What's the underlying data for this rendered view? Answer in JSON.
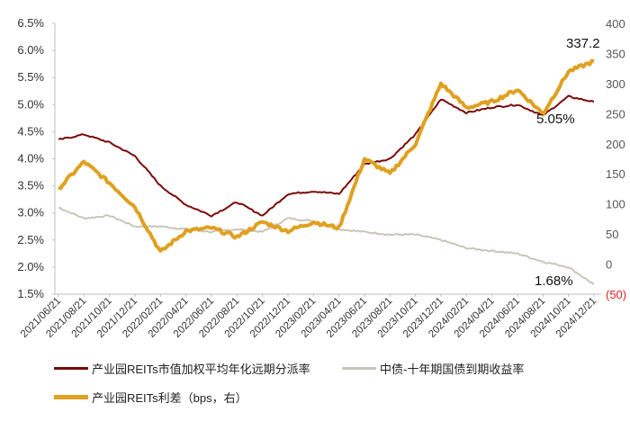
{
  "chart_data": {
    "type": "line",
    "title": "",
    "xlabel": "",
    "ylabel": "",
    "ylabel_right": "",
    "ylim": [
      1.5,
      6.5
    ],
    "ylim_right": [
      -50,
      400
    ],
    "yticks_left": [
      "6.5%",
      "6.0%",
      "5.5%",
      "5.0%",
      "4.5%",
      "4.0%",
      "3.5%",
      "3.0%",
      "2.5%",
      "2.0%",
      "1.5%"
    ],
    "yticks_right": [
      "400",
      "350",
      "300",
      "250",
      "200",
      "150",
      "100",
      "50",
      "0",
      "(50)"
    ],
    "x": [
      "2021/06/21",
      "2021/08/21",
      "2021/10/21",
      "2021/12/21",
      "2022/02/21",
      "2022/04/21",
      "2022/06/21",
      "2022/08/21",
      "2022/10/21",
      "2022/12/21",
      "2023/02/21",
      "2023/04/21",
      "2023/06/21",
      "2023/08/21",
      "2023/10/21",
      "2023/12/21",
      "2024/02/21",
      "2024/04/21",
      "2024/06/21",
      "2024/08/21",
      "2024/10/21",
      "2024/12/21"
    ],
    "grid": false,
    "legend_position": "bottom",
    "series": [
      {
        "name": "产业园REITs市值加权平均年化远期分派率",
        "axis": "left",
        "unit": "%",
        "color": "#7a0a0a",
        "values": [
          4.35,
          4.45,
          4.3,
          4.05,
          3.5,
          3.15,
          2.95,
          3.2,
          2.95,
          3.35,
          3.4,
          3.35,
          3.9,
          4.0,
          4.45,
          5.1,
          4.85,
          4.95,
          5.0,
          4.8,
          5.15,
          5.05
        ]
      },
      {
        "name": "中债-十年期国债到期收益率",
        "axis": "left",
        "unit": "%",
        "color": "#c8c6b8",
        "values": [
          3.1,
          2.9,
          2.95,
          2.75,
          2.75,
          2.7,
          2.65,
          2.7,
          2.65,
          2.9,
          2.85,
          2.7,
          2.65,
          2.6,
          2.6,
          2.5,
          2.35,
          2.3,
          2.25,
          2.1,
          2.0,
          1.68
        ]
      },
      {
        "name": "产业园REITs利差（bps，右）",
        "axis": "right",
        "unit": "bps",
        "color": "#e0a020",
        "values": [
          125,
          170,
          135,
          95,
          20,
          55,
          60,
          45,
          70,
          55,
          70,
          60,
          175,
          150,
          200,
          300,
          260,
          270,
          290,
          250,
          320,
          337.2
        ]
      }
    ],
    "annotations": [
      {
        "text": "337.2",
        "series": "产业园REITs利差（bps，右）",
        "position": "end"
      },
      {
        "text": "5.05%",
        "series": "产业园REITs市值加权平均年化远期分派率",
        "position": "end"
      },
      {
        "text": "1.68%",
        "series": "中债-十年期国债到期收益率",
        "position": "end"
      }
    ]
  },
  "legend": {
    "items": [
      {
        "label": "产业园REITs市值加权平均年化远期分派率",
        "color": "#7a0a0a"
      },
      {
        "label": "中债-十年期国债到期收益率",
        "color": "#c8c6b8"
      },
      {
        "label": "产业园REITs利差（bps，右）",
        "color": "#e0a020"
      }
    ]
  },
  "annotations": {
    "spread_end": "337.2",
    "yield_end": "5.05%",
    "bond_end": "1.68%"
  }
}
